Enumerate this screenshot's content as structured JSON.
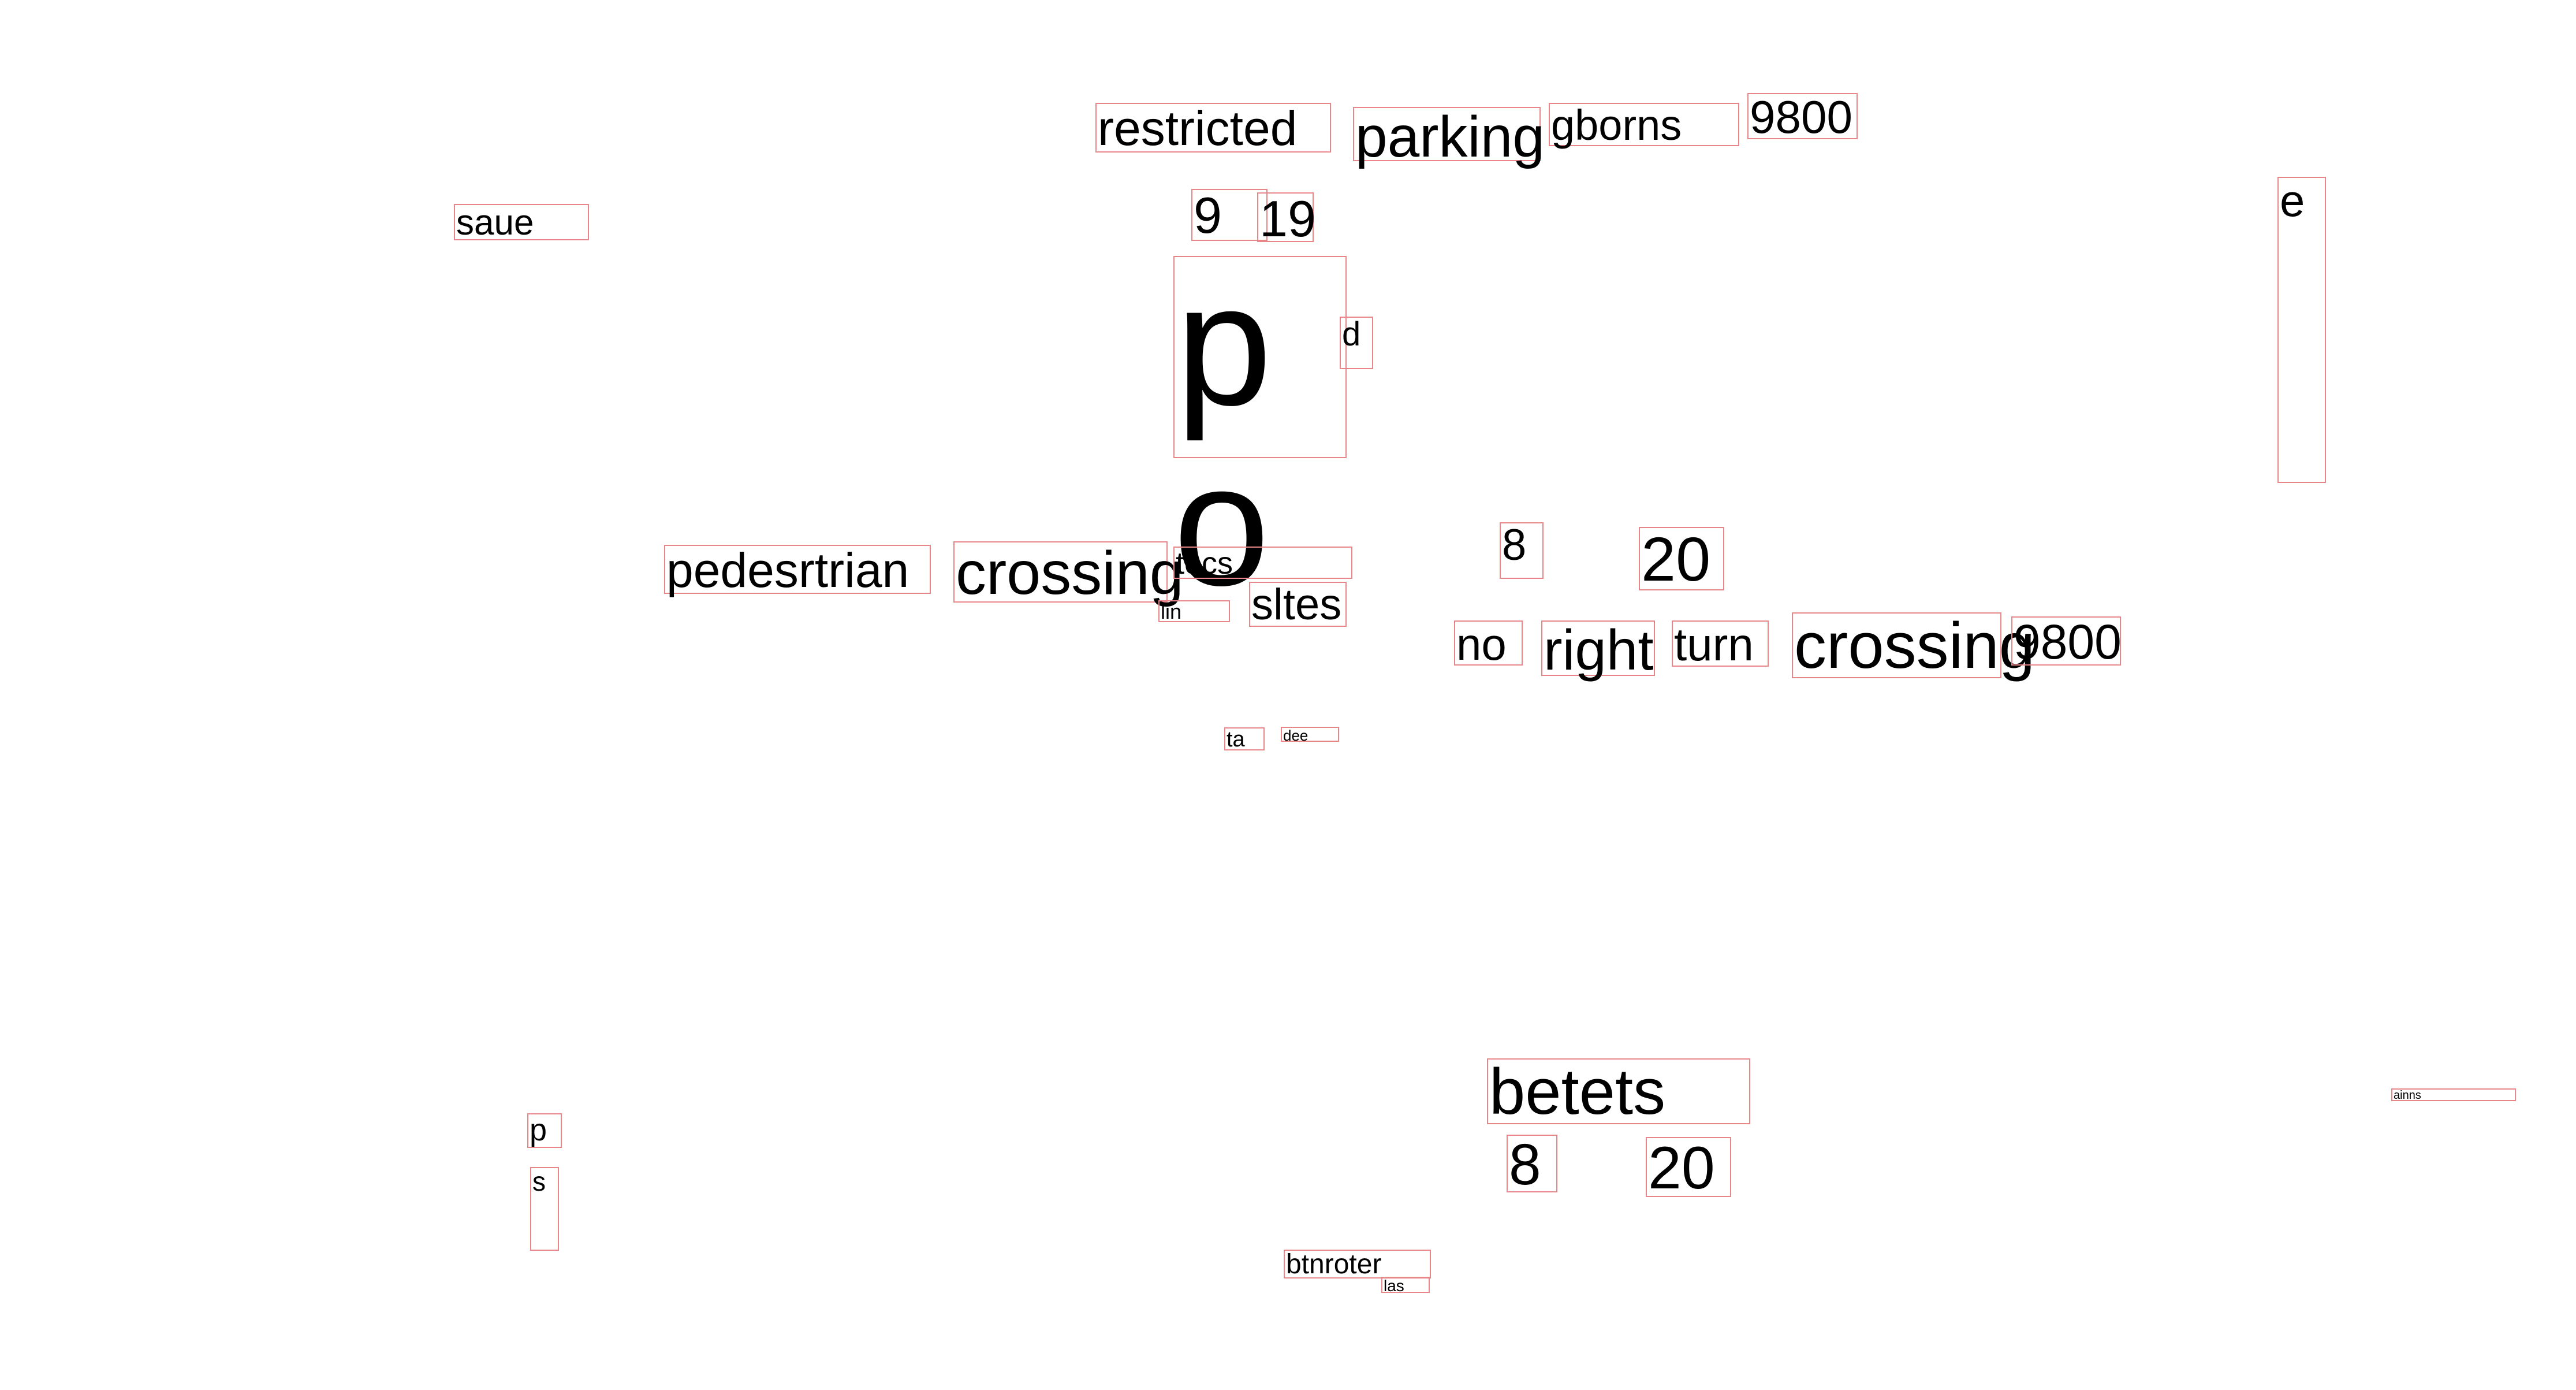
{
  "colors": {
    "background": "#ffffff",
    "text": "#000000",
    "box_outline": "#e8868a"
  },
  "words": {
    "restricted": "restricted",
    "parking": "parking",
    "gborns": "gborns",
    "num_9800_top": "9800",
    "saue": "saue",
    "num_9": "9",
    "num_19": "19",
    "e": "e",
    "p_large": "p",
    "d": "d",
    "o_large": "o",
    "pedesrtrian": "pedesrtrian",
    "crossing_left": "crossing",
    "tocs": "tocs",
    "lin": "lin",
    "sltes": "sltes",
    "num_8_mid": "8",
    "num_20_mid": "20",
    "no": "no",
    "right": "right",
    "turn": "turn",
    "crossing_right": "crossing",
    "num_9800_mid": "9800",
    "ta": "ta",
    "dee": "dee",
    "betets": "betets",
    "ainns": "ainns",
    "p_small": "p",
    "s_small": "s",
    "num_8_bottom": "8",
    "num_20_bottom": "20",
    "btnroter": "btnroter",
    "las": "las"
  }
}
